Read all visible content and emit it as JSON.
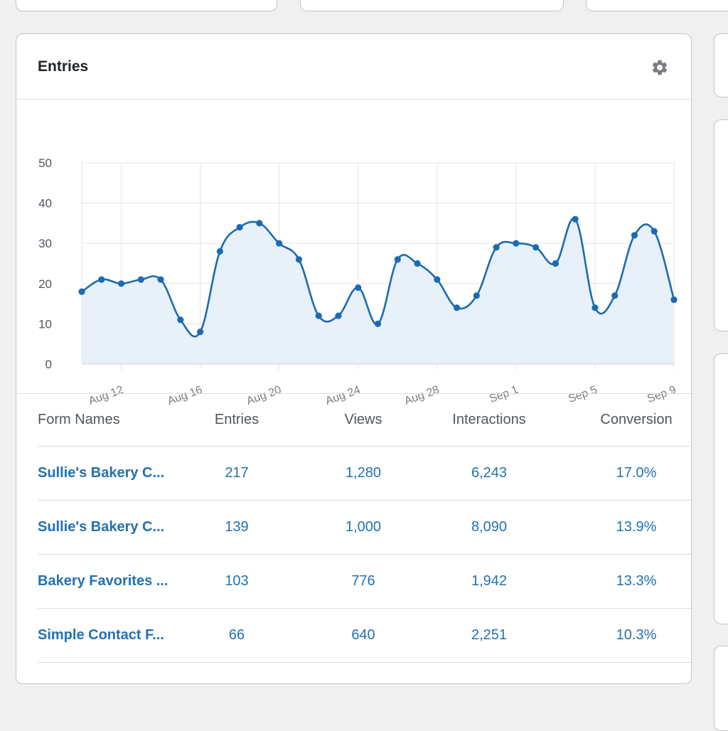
{
  "card": {
    "title": "Entries",
    "settings_icon": "gear-icon"
  },
  "colors": {
    "line": "#1c6bb1",
    "area": "#e8f0f9",
    "link": "#2271b1",
    "grid": "#e5e5e5"
  },
  "chart_data": {
    "type": "area",
    "title": "",
    "xlabel": "",
    "ylabel": "",
    "ylim": [
      0,
      50
    ],
    "yticks": [
      0,
      10,
      20,
      30,
      40,
      50
    ],
    "grid": true,
    "x": [
      "Aug 10",
      "Aug 11",
      "Aug 12",
      "Aug 13",
      "Aug 14",
      "Aug 15",
      "Aug 16",
      "Aug 17",
      "Aug 18",
      "Aug 19",
      "Aug 20",
      "Aug 21",
      "Aug 22",
      "Aug 23",
      "Aug 24",
      "Aug 25",
      "Aug 26",
      "Aug 27",
      "Aug 28",
      "Aug 29",
      "Aug 30",
      "Aug 31",
      "Sep 1",
      "Sep 2",
      "Sep 3",
      "Sep 4",
      "Sep 5",
      "Sep 6",
      "Sep 7",
      "Sep 8",
      "Sep 9"
    ],
    "xtick_labels": [
      "Aug 12",
      "Aug 16",
      "Aug 20",
      "Aug 24",
      "Aug 28",
      "Sep 1",
      "Sep 5",
      "Sep 9"
    ],
    "xtick_index": [
      2,
      6,
      10,
      14,
      18,
      22,
      26,
      30
    ],
    "series": [
      {
        "values": [
          18,
          21,
          20,
          21,
          21,
          11,
          8,
          28,
          34,
          35,
          30,
          26,
          12,
          12,
          19,
          10,
          26,
          25,
          21,
          14,
          17,
          29,
          30,
          29,
          25,
          36,
          14,
          17,
          32,
          33,
          16
        ]
      }
    ]
  },
  "table": {
    "headers": {
      "name": "Form Names",
      "entries": "Entries",
      "views": "Views",
      "interactions": "Interactions",
      "conversion": "Conversion"
    },
    "rows": [
      {
        "name": "Sullie's Bakery C...",
        "entries": "217",
        "views": "1,280",
        "interactions": "6,243",
        "conversion": "17.0%"
      },
      {
        "name": "Sullie's Bakery C...",
        "entries": "139",
        "views": "1,000",
        "interactions": "8,090",
        "conversion": "13.9%"
      },
      {
        "name": "Bakery Favorites ...",
        "entries": "103",
        "views": "776",
        "interactions": "1,942",
        "conversion": "13.3%"
      },
      {
        "name": "Simple Contact F...",
        "entries": "66",
        "views": "640",
        "interactions": "2,251",
        "conversion": "10.3%"
      }
    ]
  }
}
